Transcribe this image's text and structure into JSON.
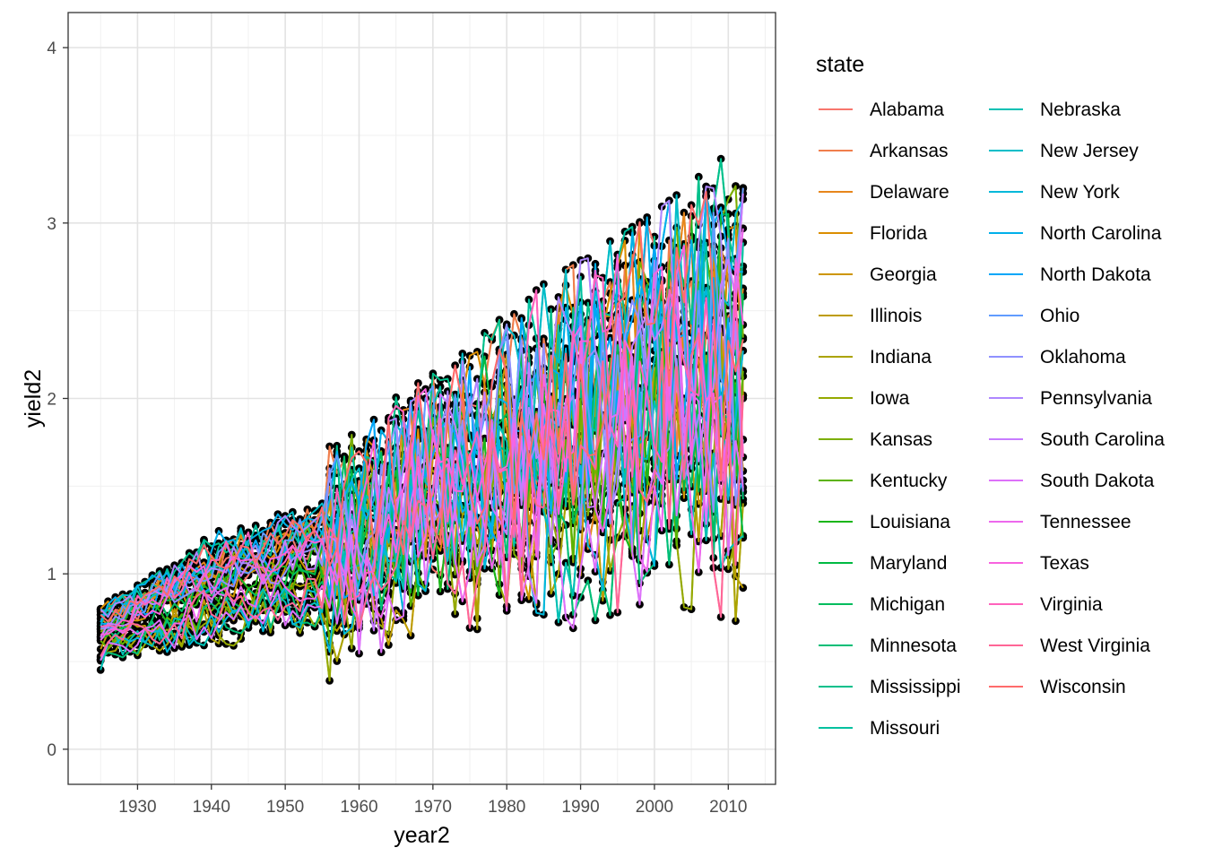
{
  "chart_data": {
    "type": "line",
    "title": "",
    "xlabel": "year2",
    "ylabel": "yield2",
    "xlim": [
      1920.6,
      2016.4
    ],
    "ylim": [
      -0.2,
      4.2
    ],
    "x_ticks": [
      1930,
      1940,
      1950,
      1960,
      1970,
      1980,
      1990,
      2000,
      2010
    ],
    "y_ticks": [
      0,
      1,
      2,
      3,
      4
    ],
    "grid": true,
    "theme": "bw",
    "points_color": "#000000",
    "legend": {
      "title": "state",
      "placement": "right",
      "columns": 2,
      "entries": [
        {
          "name": "Alabama",
          "color": "#F8766D"
        },
        {
          "name": "Arkansas",
          "color": "#F07E4C"
        },
        {
          "name": "Delaware",
          "color": "#E7861B"
        },
        {
          "name": "Florida",
          "color": "#DB8E00"
        },
        {
          "name": "Georgia",
          "color": "#CE9600"
        },
        {
          "name": "Illinois",
          "color": "#BE9C00"
        },
        {
          "name": "Indiana",
          "color": "#ABA300"
        },
        {
          "name": "Iowa",
          "color": "#95A900"
        },
        {
          "name": "Kansas",
          "color": "#7CAE00"
        },
        {
          "name": "Kentucky",
          "color": "#5BB300"
        },
        {
          "name": "Louisiana",
          "color": "#1BB61A"
        },
        {
          "name": "Maryland",
          "color": "#00BA42"
        },
        {
          "name": "Michigan",
          "color": "#00BC5E"
        },
        {
          "name": "Minnesota",
          "color": "#00BE77"
        },
        {
          "name": "Mississippi",
          "color": "#00C08B"
        },
        {
          "name": "Missouri",
          "color": "#00C19F"
        },
        {
          "name": "Nebraska",
          "color": "#00C0B4"
        },
        {
          "name": "New Jersey",
          "color": "#00BDC8"
        },
        {
          "name": "New York",
          "color": "#00B8DA"
        },
        {
          "name": "North Carolina",
          "color": "#00B0EA"
        },
        {
          "name": "North Dakota",
          "color": "#00A6F8"
        },
        {
          "name": "Ohio",
          "color": "#619CFF"
        },
        {
          "name": "Oklahoma",
          "color": "#8F91FF"
        },
        {
          "name": "Pennsylvania",
          "color": "#AE87FF"
        },
        {
          "name": "South Carolina",
          "color": "#C77CFF"
        },
        {
          "name": "South Dakota",
          "color": "#DD71FA"
        },
        {
          "name": "Tennessee",
          "color": "#ED68ED"
        },
        {
          "name": "Texas",
          "color": "#F863DF"
        },
        {
          "name": "Virginia",
          "color": "#FF62BC"
        },
        {
          "name": "West Virginia",
          "color": "#FF6696"
        },
        {
          "name": "Wisconsin",
          "color": "#FF6C6C"
        }
      ]
    },
    "series_model": {
      "note_x_range": [
        1925,
        2012
      ],
      "anchors": [
        {
          "x": 1925,
          "low": 0.35,
          "high": 0.97
        },
        {
          "x": 1940,
          "low": 0.3,
          "high": 1.5
        },
        {
          "x": 1955,
          "low": 0.4,
          "high": 1.7
        },
        {
          "x": 1970,
          "low": 0.8,
          "high": 2.1
        },
        {
          "x": 1985,
          "low": 0.7,
          "high": 2.6
        },
        {
          "x": 2000,
          "low": 0.95,
          "high": 3.0
        },
        {
          "x": 2012,
          "low": 0.8,
          "high": 3.4
        }
      ]
    }
  }
}
